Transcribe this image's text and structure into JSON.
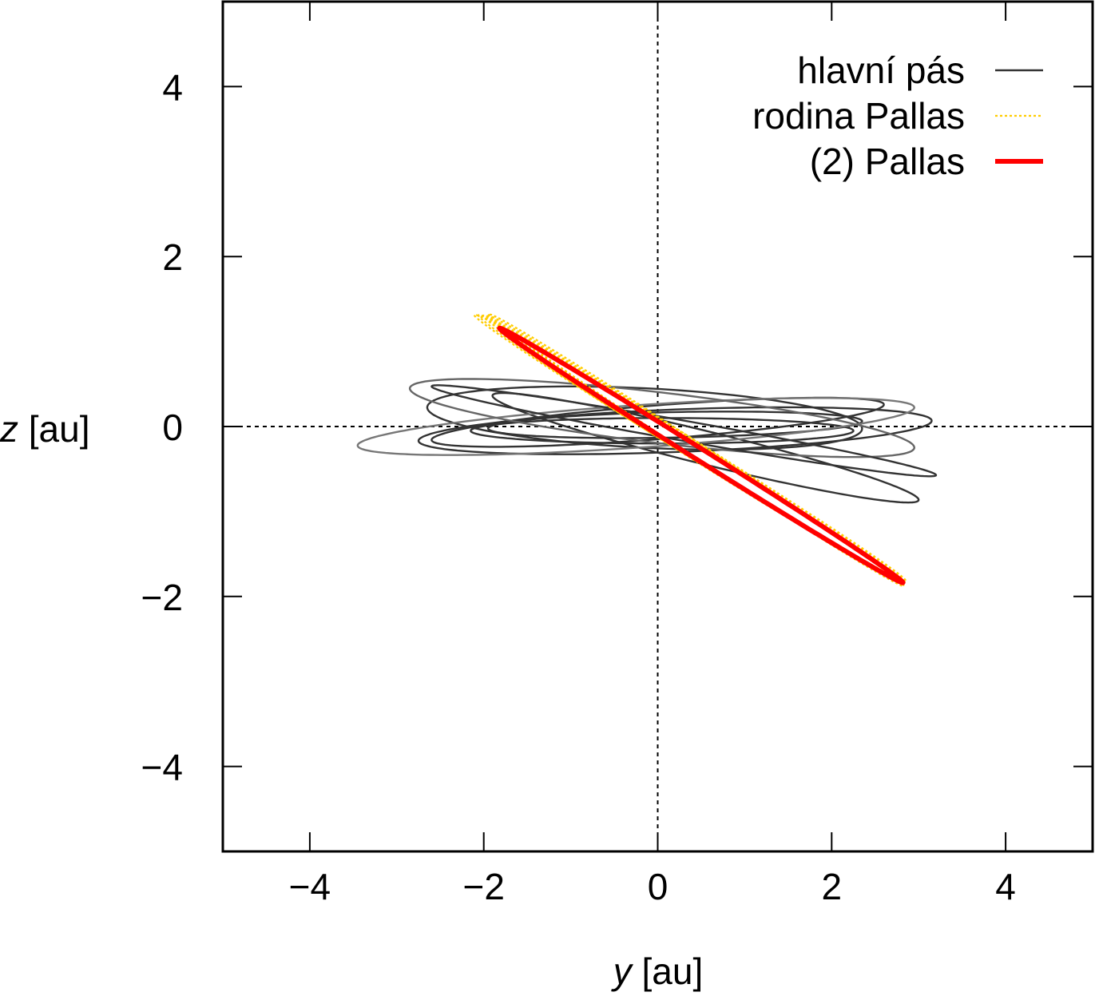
{
  "chart_data": {
    "type": "line",
    "xlabel": {
      "var": "y",
      "unit": " [au]"
    },
    "ylabel": {
      "var": "z",
      "unit": " [au]"
    },
    "xlim": [
      -5,
      5
    ],
    "ylim": [
      -5,
      5
    ],
    "xticks": [
      {
        "value": -4,
        "label": "−4"
      },
      {
        "value": -2,
        "label": "−2"
      },
      {
        "value": 0,
        "label": "0"
      },
      {
        "value": 2,
        "label": "2"
      },
      {
        "value": 4,
        "label": "4"
      }
    ],
    "yticks": [
      {
        "value": 4,
        "label": "4"
      },
      {
        "value": 2,
        "label": "2"
      },
      {
        "value": 0,
        "label": "0"
      },
      {
        "value": -2,
        "label": "−2"
      },
      {
        "value": -4,
        "label": "−4"
      }
    ],
    "zero_lines": true,
    "legend_position": "top-right",
    "series": [
      {
        "name": "hlavní pás",
        "style": "thin-solid",
        "color": "#333333",
        "orbits": [
          {
            "center": [
              0.2,
              -0.05
            ],
            "a": 2.95,
            "b": 0.25,
            "tilt_z": 0.04
          },
          {
            "center": [
              -0.15,
              0.1
            ],
            "a": 2.5,
            "b": 0.35,
            "tilt_z": -0.05
          },
          {
            "center": [
              0.55,
              -0.25
            ],
            "a": 2.45,
            "b": 0.2,
            "tilt_z": -0.25
          },
          {
            "center": [
              0.0,
              0.05
            ],
            "a": 2.6,
            "b": 0.2,
            "tilt_z": 0.08
          },
          {
            "center": [
              0.05,
              -0.05
            ],
            "a": 2.2,
            "b": 0.15,
            "tilt_z": 0.0
          },
          {
            "center": [
              0.2,
              0.02
            ],
            "a": 2.15,
            "b": 0.15,
            "tilt_z": 0.02
          },
          {
            "center": [
              -0.25,
              0.0
            ],
            "a": 3.2,
            "b": 0.25,
            "tilt_z": 0.07,
            "color": "#777777"
          },
          {
            "center": [
              0.05,
              0.1
            ],
            "a": 2.9,
            "b": 0.3,
            "tilt_z": -0.12,
            "color": "#666666"
          },
          {
            "center": [
              0.3,
              -0.05
            ],
            "a": 2.9,
            "b": 0.12,
            "tilt_z": -0.18
          }
        ]
      },
      {
        "name": "rodina Pallas",
        "style": "dotted",
        "color": "#ffcc00",
        "orbits": [
          {
            "center": [
              0.41,
              -0.27
            ],
            "a": 2.42,
            "b": 0.1,
            "tilt_z": -0.65
          },
          {
            "center": [
              0.39,
              -0.26
            ],
            "a": 2.45,
            "b": 0.12,
            "tilt_z": -0.64
          },
          {
            "center": [
              0.43,
              -0.27
            ],
            "a": 2.4,
            "b": 0.09,
            "tilt_z": -0.66
          },
          {
            "center": [
              0.37,
              -0.25
            ],
            "a": 2.48,
            "b": 0.11,
            "tilt_z": -0.63
          },
          {
            "center": [
              0.45,
              -0.28
            ],
            "a": 2.38,
            "b": 0.1,
            "tilt_z": -0.67
          }
        ]
      },
      {
        "name": "(2) Pallas",
        "style": "thick-solid",
        "color": "#ff0000",
        "orbits": [
          {
            "center": [
              0.5,
              -0.34
            ],
            "a": 2.32,
            "b": 0.08,
            "tilt_z": -0.645
          }
        ]
      }
    ]
  }
}
